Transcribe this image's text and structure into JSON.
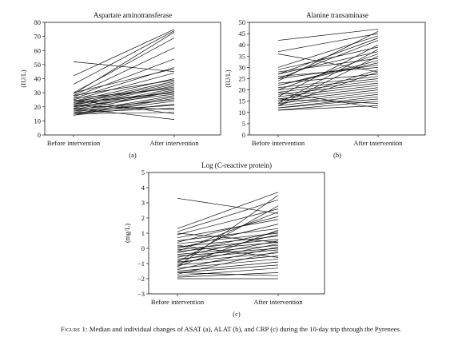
{
  "caption": {
    "label": "Figure 1:",
    "text": "Median and individual changes of ASAT (a), ALAT (b), and CRP (c) during the 10-day trip through the Pyrenees."
  },
  "chart_data": [
    {
      "type": "line",
      "panel": "(a)",
      "title": "Aspartate aminotransferase",
      "ylabel": "(IU/L)",
      "categories": [
        "Before intervention",
        "After intervention"
      ],
      "ylim": [
        0,
        80
      ],
      "yticks": [
        0,
        10,
        20,
        30,
        40,
        50,
        60,
        70,
        80
      ],
      "grid": false,
      "series": [
        {
          "values": [
            52,
            45
          ]
        },
        {
          "values": [
            42,
            75
          ]
        },
        {
          "values": [
            36,
            74
          ]
        },
        {
          "values": [
            30,
            69
          ]
        },
        {
          "values": [
            29,
            73
          ]
        },
        {
          "values": [
            28,
            62
          ]
        },
        {
          "values": [
            27,
            54
          ]
        },
        {
          "values": [
            30,
            47
          ]
        },
        {
          "values": [
            26,
            48
          ]
        },
        {
          "values": [
            25,
            44
          ]
        },
        {
          "values": [
            24,
            40
          ]
        },
        {
          "values": [
            23,
            38
          ]
        },
        {
          "values": [
            22,
            37
          ]
        },
        {
          "values": [
            21,
            36
          ]
        },
        {
          "values": [
            20,
            35
          ]
        },
        {
          "values": [
            24,
            34
          ]
        },
        {
          "values": [
            19,
            33
          ]
        },
        {
          "values": [
            18,
            32
          ]
        },
        {
          "values": [
            17,
            31
          ]
        },
        {
          "values": [
            22,
            30
          ]
        },
        {
          "values": [
            20,
            29
          ]
        },
        {
          "values": [
            16,
            28
          ]
        },
        {
          "values": [
            15,
            27
          ]
        },
        {
          "values": [
            14,
            26
          ]
        },
        {
          "values": [
            18,
            25
          ]
        },
        {
          "values": [
            15,
            24
          ]
        },
        {
          "values": [
            14,
            22
          ]
        },
        {
          "values": [
            17,
            21
          ]
        },
        {
          "values": [
            16,
            19
          ]
        },
        {
          "values": [
            21,
            18
          ]
        },
        {
          "values": [
            15,
            16
          ]
        },
        {
          "values": [
            25,
            15
          ]
        },
        {
          "values": [
            19,
            11
          ]
        },
        {
          "values": [
            26,
            33
          ]
        },
        {
          "values": [
            23,
            30
          ]
        },
        {
          "values": [
            28,
            39
          ]
        }
      ]
    },
    {
      "type": "line",
      "panel": "(b)",
      "title": "Alanine transaminase",
      "ylabel": "(IU/L)",
      "categories": [
        "Before intervention",
        "After intervention"
      ],
      "ylim": [
        0,
        50
      ],
      "yticks": [
        0,
        5,
        10,
        15,
        20,
        25,
        30,
        35,
        40,
        45,
        50
      ],
      "grid": false,
      "series": [
        {
          "values": [
            42,
            47
          ]
        },
        {
          "values": [
            37,
            45
          ]
        },
        {
          "values": [
            36,
            28
          ]
        },
        {
          "values": [
            30,
            44
          ]
        },
        {
          "values": [
            29,
            39
          ]
        },
        {
          "values": [
            28,
            34
          ]
        },
        {
          "values": [
            27,
            43
          ]
        },
        {
          "values": [
            26,
            30
          ]
        },
        {
          "values": [
            25,
            31
          ]
        },
        {
          "values": [
            24,
            46
          ]
        },
        {
          "values": [
            23,
            27
          ]
        },
        {
          "values": [
            22,
            32
          ]
        },
        {
          "values": [
            21,
            26
          ]
        },
        {
          "values": [
            20,
            25
          ]
        },
        {
          "values": [
            20,
            36
          ]
        },
        {
          "values": [
            19,
            24
          ]
        },
        {
          "values": [
            18,
            23
          ]
        },
        {
          "values": [
            17,
            22
          ]
        },
        {
          "values": [
            17,
            40
          ]
        },
        {
          "values": [
            16,
            21
          ]
        },
        {
          "values": [
            15,
            20
          ]
        },
        {
          "values": [
            15,
            29
          ]
        },
        {
          "values": [
            14,
            19
          ]
        },
        {
          "values": [
            14,
            38
          ]
        },
        {
          "values": [
            13,
            18
          ]
        },
        {
          "values": [
            13,
            35
          ]
        },
        {
          "values": [
            12,
            17
          ]
        },
        {
          "values": [
            12,
            16
          ]
        },
        {
          "values": [
            11,
            15
          ]
        },
        {
          "values": [
            11,
            13
          ]
        },
        {
          "values": [
            16,
            14
          ]
        },
        {
          "values": [
            19,
            12
          ]
        },
        {
          "values": [
            22,
            33
          ]
        },
        {
          "values": [
            25,
            42
          ]
        },
        {
          "values": [
            27,
            37
          ]
        },
        {
          "values": [
            13,
            28
          ]
        }
      ]
    },
    {
      "type": "line",
      "panel": "(c)",
      "title": "Log (C-reactive protein)",
      "ylabel": "(mg/L)",
      "categories": [
        "Before intervention",
        "After intervention"
      ],
      "ylim": [
        -3,
        5
      ],
      "yticks": [
        -3,
        -2,
        -1,
        0,
        1,
        2,
        3,
        4,
        5
      ],
      "grid": false,
      "series": [
        {
          "values": [
            3.3,
            2.3
          ]
        },
        {
          "values": [
            1.3,
            3.7
          ]
        },
        {
          "values": [
            1.1,
            3.2
          ]
        },
        {
          "values": [
            0.9,
            2.6
          ]
        },
        {
          "values": [
            0.7,
            1.9
          ]
        },
        {
          "values": [
            0.5,
            1.3
          ]
        },
        {
          "values": [
            0.4,
            2.1
          ]
        },
        {
          "values": [
            0.3,
            1.0
          ]
        },
        {
          "values": [
            0.1,
            0.8
          ]
        },
        {
          "values": [
            0.0,
            1.6
          ]
        },
        {
          "values": [
            -0.1,
            0.6
          ]
        },
        {
          "values": [
            -0.2,
            0.4
          ]
        },
        {
          "values": [
            -0.3,
            1.1
          ]
        },
        {
          "values": [
            -0.4,
            0.2
          ]
        },
        {
          "values": [
            -0.5,
            0.0
          ]
        },
        {
          "values": [
            -0.6,
            0.9
          ]
        },
        {
          "values": [
            -0.7,
            -0.1
          ]
        },
        {
          "values": [
            -0.8,
            0.5
          ]
        },
        {
          "values": [
            -0.9,
            -0.3
          ]
        },
        {
          "values": [
            -1.0,
            0.3
          ]
        },
        {
          "values": [
            -1.1,
            -0.5
          ]
        },
        {
          "values": [
            -1.2,
            1.2
          ]
        },
        {
          "values": [
            -1.3,
            -0.7
          ]
        },
        {
          "values": [
            -1.4,
            0.1
          ]
        },
        {
          "values": [
            -1.5,
            -0.9
          ]
        },
        {
          "values": [
            -1.6,
            -1.1
          ]
        },
        {
          "values": [
            -1.7,
            -0.2
          ]
        },
        {
          "values": [
            -1.8,
            -1.3
          ]
        },
        {
          "values": [
            -1.9,
            -1.6
          ]
        },
        {
          "values": [
            -2.0,
            -2.0
          ]
        },
        {
          "values": [
            -1.6,
            -1.8
          ]
        },
        {
          "values": [
            -1.2,
            3.5
          ]
        },
        {
          "values": [
            -0.9,
            2.8
          ]
        },
        {
          "values": [
            1.0,
            0.4
          ]
        },
        {
          "values": [
            0.2,
            -0.6
          ]
        },
        {
          "values": [
            -0.2,
            2.4
          ]
        }
      ]
    }
  ]
}
